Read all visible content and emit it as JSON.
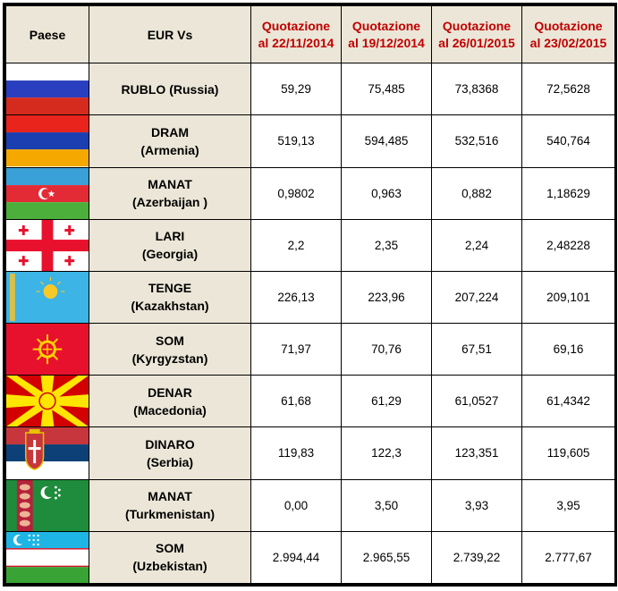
{
  "headers": {
    "country": "Paese",
    "eur": "EUR Vs",
    "dates": [
      {
        "line1": "Quotazione",
        "line2": "al  22/11/2014"
      },
      {
        "line1": "Quotazione",
        "line2": "al 19/12/2014"
      },
      {
        "line1": "Quotazione",
        "line2": "al 26/01/2015"
      },
      {
        "line1": "Quotazione",
        "line2": "al 23/02/2015"
      }
    ]
  },
  "colors": {
    "header_bg": "#ebe6d7",
    "header_date_text": "#c00000",
    "border": "#000000"
  },
  "rows": [
    {
      "flag": "russia-flag-icon",
      "currency": "RUBLO  (Russia)",
      "country": "",
      "values": [
        "59,29",
        "75,485",
        "73,8368",
        "72,5628"
      ]
    },
    {
      "flag": "armenia-flag-icon",
      "currency": "DRAM",
      "country": "(Armenia)",
      "values": [
        "519,13",
        "594,485",
        "532,516",
        "540,764"
      ]
    },
    {
      "flag": "azerbaijan-flag-icon",
      "currency": "MANAT",
      "country": "(Azerbaijan )",
      "values": [
        "0,9802",
        "0,963",
        "0,882",
        "1,18629"
      ]
    },
    {
      "flag": "georgia-flag-icon",
      "currency": "LARI",
      "country": "(Georgia)",
      "values": [
        "2,2",
        "2,35",
        "2,24",
        "2,48228"
      ]
    },
    {
      "flag": "kazakhstan-flag-icon",
      "currency": "TENGE",
      "country": "(Kazakhstan)",
      "values": [
        "226,13",
        "223,96",
        "207,224",
        "209,101"
      ]
    },
    {
      "flag": "kyrgyzstan-flag-icon",
      "currency": "SOM",
      "country": "(Kyrgyzstan)",
      "values": [
        "71,97",
        "70,76",
        "67,51",
        "69,16"
      ]
    },
    {
      "flag": "macedonia-flag-icon",
      "currency": "DENAR",
      "country": "(Macedonia)",
      "values": [
        "61,68",
        "61,29",
        "61,0527",
        "61,4342"
      ]
    },
    {
      "flag": "serbia-flag-icon",
      "currency": "DINARO",
      "country": "(Serbia)",
      "values": [
        "119,83",
        "122,3",
        "123,351",
        "119,605"
      ]
    },
    {
      "flag": "turkmenistan-flag-icon",
      "currency": "MANAT",
      "country": "(Turkmenistan)",
      "values": [
        "0,00",
        "3,50",
        "3,93",
        "3,95"
      ]
    },
    {
      "flag": "uzbekistan-flag-icon",
      "currency": "SOM",
      "country": "(Uzbekistan)",
      "values": [
        "2.994,44",
        "2.965,55",
        "2.739,22",
        "2.777,67"
      ]
    }
  ]
}
